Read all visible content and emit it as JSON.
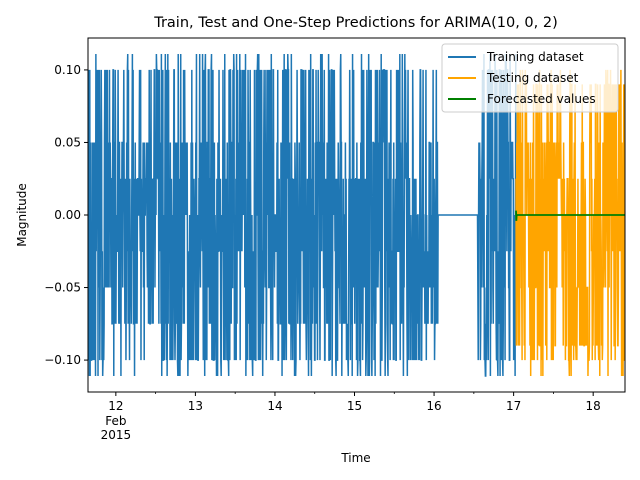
{
  "chart_data": {
    "type": "line",
    "title": "Train, Test and One-Step Predictions for ARIMA(10, 0, 2)",
    "xlabel": "Time",
    "ylabel": "Magnitude",
    "x_range_days": [
      11.65,
      18.4
    ],
    "ylim": [
      -0.122,
      0.122
    ],
    "x_ticks": [
      {
        "day": 12,
        "label": "12",
        "sub": [
          "Feb",
          "2015"
        ]
      },
      {
        "day": 13,
        "label": "13"
      },
      {
        "day": 14,
        "label": "14"
      },
      {
        "day": 15,
        "label": "15"
      },
      {
        "day": 16,
        "label": "16"
      },
      {
        "day": 17,
        "label": "17"
      },
      {
        "day": 18,
        "label": "18"
      }
    ],
    "y_ticks": [
      {
        "value": 0.1,
        "label": "0.10"
      },
      {
        "value": 0.05,
        "label": "0.05"
      },
      {
        "value": 0.0,
        "label": "0.00"
      },
      {
        "value": -0.05,
        "label": "−0.05"
      },
      {
        "value": -0.1,
        "label": "−0.10"
      }
    ],
    "grid": false,
    "legend_position": "top-right",
    "series": [
      {
        "name": "Training dataset",
        "color": "#1f77b4",
        "x_start_day": 11.65,
        "x_end_day": 17.03,
        "values_min": -0.111,
        "values_max": 0.111,
        "typical_levels": [
          0.1,
          0.05,
          0.025,
          0.0,
          -0.025,
          -0.05,
          -0.075,
          -0.1
        ],
        "flat_segment": {
          "from_day": 16.05,
          "to_day": 16.55,
          "value": 0.0
        }
      },
      {
        "name": "Testing dataset",
        "color": "#ffa500",
        "x_start_day": 17.03,
        "x_end_day": 18.4,
        "values_min": -0.111,
        "values_max": 0.1,
        "typical_levels": [
          0.09,
          0.05,
          0.025,
          0.0,
          -0.025,
          -0.05,
          -0.09,
          -0.1
        ]
      },
      {
        "name": "Forecasted values",
        "color": "#008000",
        "x_start_day": 17.03,
        "x_end_day": 18.4,
        "values": [
          0.003,
          -0.004,
          0.0
        ],
        "steady_value": 0.0
      }
    ]
  }
}
